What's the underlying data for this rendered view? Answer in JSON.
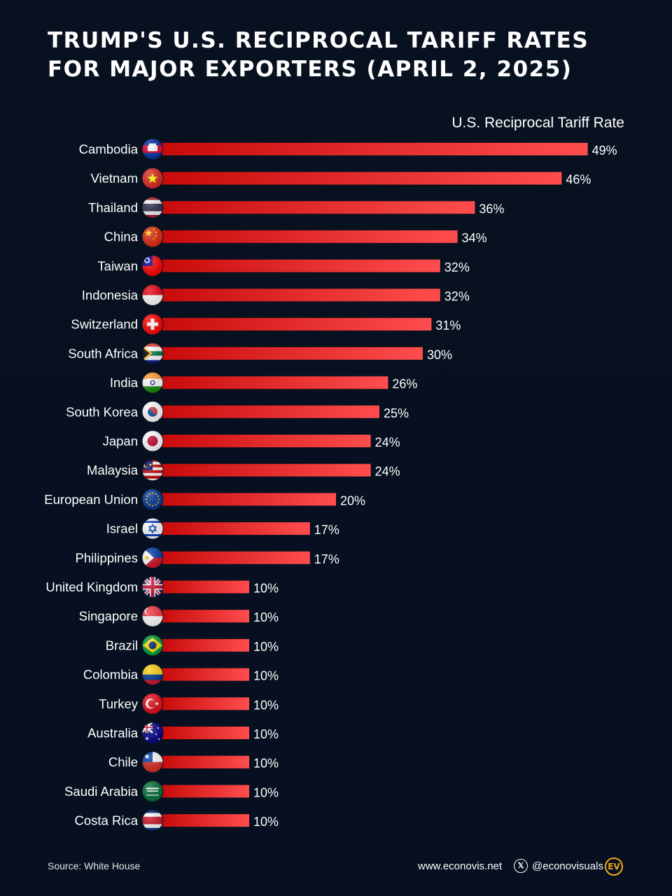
{
  "title_line1": "TRUMP'S U.S. RECIPROCAL TARIFF RATES",
  "title_line2": "FOR MAJOR EXPORTERS (APRIL 2, 2025)",
  "footer": {
    "source": "Source: White House",
    "website": "www.econovis.net",
    "handle": "@econovisuals",
    "logo": "EV"
  },
  "colors": {
    "background": "#060f1c",
    "bar_start": "#c80b0b",
    "bar_end": "#ff4d4d",
    "logo": "#f2a91d"
  },
  "chart_data": {
    "type": "bar",
    "orientation": "horizontal",
    "title": "TRUMP'S U.S. RECIPROCAL TARIFF RATES FOR MAJOR EXPORTERS (APRIL 2, 2025)",
    "value_axis_label": "U.S. Reciprocal Tariff Rate",
    "unit": "%",
    "grid": false,
    "categories": [
      "Cambodia",
      "Vietnam",
      "Thailand",
      "China",
      "Taiwan",
      "Indonesia",
      "Switzerland",
      "South Africa",
      "India",
      "South Korea",
      "Japan",
      "Malaysia",
      "European Union",
      "Israel",
      "Philippines",
      "United Kingdom",
      "Singapore",
      "Brazil",
      "Colombia",
      "Turkey",
      "Australia",
      "Chile",
      "Saudi Arabia",
      "Costa Rica"
    ],
    "values": [
      49,
      46,
      36,
      34,
      32,
      32,
      31,
      30,
      26,
      25,
      24,
      24,
      20,
      17,
      17,
      10,
      10,
      10,
      10,
      10,
      10,
      10,
      10,
      10
    ],
    "data_labels": [
      "49%",
      "46%",
      "36%",
      "34%",
      "32%",
      "32%",
      "31%",
      "30%",
      "26%",
      "25%",
      "24%",
      "24%",
      "20%",
      "17%",
      "17%",
      "10%",
      "10%",
      "10%",
      "10%",
      "10%",
      "10%",
      "10%",
      "10%",
      "10%"
    ],
    "flag_icons": [
      "flag-cambodia-icon",
      "flag-vietnam-icon",
      "flag-thailand-icon",
      "flag-china-icon",
      "flag-taiwan-icon",
      "flag-indonesia-icon",
      "flag-switzerland-icon",
      "flag-south-africa-icon",
      "flag-india-icon",
      "flag-south-korea-icon",
      "flag-japan-icon",
      "flag-malaysia-icon",
      "flag-european-union-icon",
      "flag-israel-icon",
      "flag-philippines-icon",
      "flag-united-kingdom-icon",
      "flag-singapore-icon",
      "flag-brazil-icon",
      "flag-colombia-icon",
      "flag-turkey-icon",
      "flag-australia-icon",
      "flag-chile-icon",
      "flag-saudi-arabia-icon",
      "flag-costa-rica-icon"
    ]
  }
}
